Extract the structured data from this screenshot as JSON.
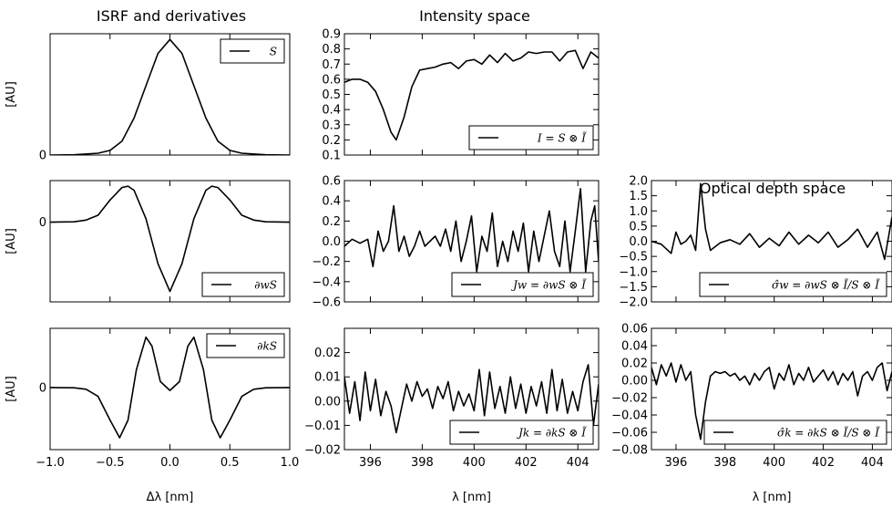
{
  "column_titles": [
    "ISRF and derivatives",
    "Intensity space",
    "Optical depth space"
  ],
  "chart_data": [
    {
      "id": "isrf-S",
      "type": "line",
      "ylabel": "[AU]",
      "xlabel": "",
      "xlim": [
        -1.0,
        1.0
      ],
      "ylim": [
        0,
        1.05
      ],
      "yticks": [
        0
      ],
      "ytick_labels": [
        "0"
      ],
      "xticks": [
        -1.0,
        -0.5,
        0.0,
        0.5,
        1.0
      ],
      "xtick_labels": [],
      "legend": {
        "label": "S",
        "loc": "upper right"
      },
      "series": [
        {
          "name": "S",
          "x": [
            -1.0,
            -0.8,
            -0.6,
            -0.5,
            -0.4,
            -0.3,
            -0.2,
            -0.1,
            0.0,
            0.1,
            0.2,
            0.3,
            0.4,
            0.5,
            0.6,
            0.8,
            1.0
          ],
          "y": [
            0,
            0.002,
            0.016,
            0.04,
            0.12,
            0.32,
            0.6,
            0.88,
            1.0,
            0.88,
            0.6,
            0.32,
            0.12,
            0.04,
            0.016,
            0.002,
            0
          ]
        }
      ]
    },
    {
      "id": "intensity-I",
      "type": "line",
      "xlabel": "",
      "ylabel": "",
      "xlim": [
        395,
        404.8
      ],
      "ylim": [
        0.1,
        0.9
      ],
      "yticks": [
        0.1,
        0.2,
        0.3,
        0.4,
        0.5,
        0.6,
        0.7,
        0.8,
        0.9
      ],
      "ytick_labels": [
        "0.1",
        "0.2",
        "0.3",
        "0.4",
        "0.5",
        "0.6",
        "0.7",
        "0.8",
        "0.9"
      ],
      "xticks": [
        396,
        398,
        400,
        402,
        404
      ],
      "xtick_labels": [],
      "legend": {
        "label": "I = S ⊗ Ĩ",
        "loc": "lower right"
      },
      "series": [
        {
          "name": "I = S ⊗ Ĩ",
          "x": [
            395,
            395.3,
            395.6,
            395.9,
            396.2,
            396.5,
            396.8,
            397.0,
            397.3,
            397.6,
            397.9,
            398.2,
            398.5,
            398.8,
            399.1,
            399.4,
            399.7,
            400.0,
            400.3,
            400.6,
            400.9,
            401.2,
            401.5,
            401.8,
            402.1,
            402.4,
            402.7,
            403.0,
            403.3,
            403.6,
            403.9,
            404.2,
            404.5,
            404.8
          ],
          "y": [
            0.58,
            0.6,
            0.6,
            0.58,
            0.52,
            0.4,
            0.25,
            0.2,
            0.35,
            0.55,
            0.66,
            0.67,
            0.68,
            0.7,
            0.71,
            0.67,
            0.72,
            0.73,
            0.7,
            0.76,
            0.71,
            0.77,
            0.72,
            0.74,
            0.78,
            0.77,
            0.78,
            0.78,
            0.72,
            0.78,
            0.79,
            0.67,
            0.78,
            0.74
          ]
        }
      ]
    },
    {
      "id": "isrf-dwS",
      "type": "line",
      "ylabel": "[AU]",
      "xlabel": "",
      "xlim": [
        -1.0,
        1.0
      ],
      "ylim": [
        -1.15,
        0.6
      ],
      "yticks": [
        0
      ],
      "ytick_labels": [
        "0"
      ],
      "xticks": [
        -1.0,
        -0.5,
        0.0,
        0.5,
        1.0
      ],
      "xtick_labels": [],
      "legend": {
        "label": "∂wS",
        "loc": "lower right"
      },
      "series": [
        {
          "name": "∂wS",
          "x": [
            -1.0,
            -0.8,
            -0.7,
            -0.6,
            -0.5,
            -0.4,
            -0.35,
            -0.3,
            -0.2,
            -0.1,
            0.0,
            0.1,
            0.2,
            0.3,
            0.35,
            0.4,
            0.5,
            0.6,
            0.7,
            0.8,
            1.0
          ],
          "y": [
            0,
            0.005,
            0.03,
            0.1,
            0.32,
            0.5,
            0.52,
            0.46,
            0.05,
            -0.6,
            -1.0,
            -0.6,
            0.05,
            0.46,
            0.52,
            0.5,
            0.32,
            0.1,
            0.03,
            0.005,
            0
          ]
        }
      ]
    },
    {
      "id": "intensity-Jw",
      "type": "line",
      "xlabel": "",
      "ylabel": "",
      "xlim": [
        395,
        404.8
      ],
      "ylim": [
        -0.6,
        0.6
      ],
      "yticks": [
        -0.6,
        -0.4,
        -0.2,
        0.0,
        0.2,
        0.4,
        0.6
      ],
      "ytick_labels": [
        "−0.6",
        "−0.4",
        "−0.2",
        "0.0",
        "0.2",
        "0.4",
        "0.6"
      ],
      "xticks": [
        396,
        398,
        400,
        402,
        404
      ],
      "xtick_labels": [],
      "legend": {
        "label": "Jw = ∂wS ⊗ Ĩ",
        "loc": "lower right"
      },
      "series": [
        {
          "name": "Jw = ∂wS ⊗ Ĩ",
          "x": [
            395,
            395.3,
            395.6,
            395.9,
            396.1,
            396.3,
            396.5,
            396.7,
            396.9,
            397.1,
            397.3,
            397.5,
            397.7,
            397.9,
            398.1,
            398.3,
            398.5,
            398.7,
            398.9,
            399.1,
            399.3,
            399.5,
            399.7,
            399.9,
            400.1,
            400.3,
            400.5,
            400.7,
            400.9,
            401.1,
            401.3,
            401.5,
            401.7,
            401.9,
            402.1,
            402.3,
            402.5,
            402.7,
            402.9,
            403.1,
            403.3,
            403.5,
            403.7,
            403.9,
            404.1,
            404.3,
            404.5,
            404.65,
            404.8
          ],
          "y": [
            -0.05,
            0.02,
            -0.02,
            0.02,
            -0.25,
            0.1,
            -0.1,
            0.0,
            0.35,
            -0.1,
            0.05,
            -0.15,
            -0.05,
            0.1,
            -0.05,
            0.0,
            0.05,
            -0.05,
            0.12,
            -0.1,
            0.2,
            -0.2,
            0.0,
            0.25,
            -0.3,
            0.05,
            -0.1,
            0.28,
            -0.25,
            0.0,
            -0.2,
            0.1,
            -0.1,
            0.18,
            -0.3,
            0.1,
            -0.2,
            0.05,
            0.3,
            -0.1,
            -0.25,
            0.2,
            -0.3,
            0.1,
            0.52,
            -0.3,
            0.2,
            0.35,
            -0.2
          ]
        }
      ]
    },
    {
      "id": "optical-sw",
      "type": "line",
      "xlabel": "",
      "ylabel": "",
      "xlim": [
        395,
        404.8
      ],
      "ylim": [
        -2.0,
        2.0
      ],
      "yticks": [
        -2.0,
        -1.5,
        -1.0,
        -0.5,
        0.0,
        0.5,
        1.0,
        1.5,
        2.0
      ],
      "ytick_labels": [
        "−2.0",
        "−1.5",
        "−1.0",
        "−0.5",
        "0.0",
        "0.5",
        "1.0",
        "1.5",
        "2.0"
      ],
      "xticks": [
        396,
        398,
        400,
        402,
        404
      ],
      "xtick_labels": [],
      "legend": {
        "label": "σ̂w = ∂wS ⊗ Ĩ/S ⊗ Ĩ",
        "loc": "lower right"
      },
      "series": [
        {
          "name": "σ̂w = ∂wS ⊗ Ĩ/S ⊗ Ĩ",
          "x": [
            395,
            395.4,
            395.8,
            396.0,
            396.2,
            396.4,
            396.6,
            396.8,
            397.0,
            397.2,
            397.4,
            397.8,
            398.2,
            398.6,
            399.0,
            399.4,
            399.8,
            400.2,
            400.6,
            401.0,
            401.4,
            401.8,
            402.2,
            402.6,
            403.0,
            403.4,
            403.8,
            404.2,
            404.5,
            404.8
          ],
          "y": [
            0.0,
            -0.1,
            -0.4,
            0.3,
            -0.1,
            0.0,
            0.2,
            -0.3,
            1.9,
            0.4,
            -0.3,
            -0.05,
            0.05,
            -0.1,
            0.25,
            -0.2,
            0.1,
            -0.15,
            0.3,
            -0.1,
            0.2,
            -0.05,
            0.3,
            -0.2,
            0.05,
            0.4,
            -0.2,
            0.3,
            -0.6,
            0.8
          ]
        }
      ]
    },
    {
      "id": "isrf-dkS",
      "type": "line",
      "ylabel": "[AU]",
      "xlabel": "Δλ [nm]",
      "xlim": [
        -1.0,
        1.0
      ],
      "ylim": [
        -1.05,
        1.0
      ],
      "yticks": [
        0
      ],
      "ytick_labels": [
        "0"
      ],
      "xticks": [
        -1.0,
        -0.5,
        0.0,
        0.5,
        1.0
      ],
      "xtick_labels": [
        "−1.0",
        "−0.5",
        "0.0",
        "0.5",
        "1.0"
      ],
      "legend": {
        "label": "∂kS",
        "loc": "upper right"
      },
      "series": [
        {
          "name": "∂kS",
          "x": [
            -1.0,
            -0.8,
            -0.7,
            -0.6,
            -0.5,
            -0.42,
            -0.35,
            -0.28,
            -0.2,
            -0.15,
            -0.08,
            0.0,
            0.08,
            0.15,
            0.2,
            0.28,
            0.35,
            0.42,
            0.5,
            0.6,
            0.7,
            0.8,
            1.0
          ],
          "y": [
            0,
            -0.005,
            -0.03,
            -0.15,
            -0.55,
            -0.85,
            -0.55,
            0.3,
            0.85,
            0.7,
            0.1,
            -0.05,
            0.1,
            0.7,
            0.85,
            0.3,
            -0.55,
            -0.85,
            -0.55,
            -0.15,
            -0.03,
            -0.005,
            0
          ]
        }
      ]
    },
    {
      "id": "intensity-Jk",
      "type": "line",
      "ylabel": "",
      "xlabel": "λ [nm]",
      "xlim": [
        395,
        404.8
      ],
      "ylim": [
        -0.02,
        0.03
      ],
      "yticks": [
        -0.02,
        -0.01,
        0.0,
        0.01,
        0.02
      ],
      "ytick_labels": [
        "−0.02",
        "−0.01",
        "0.00",
        "0.01",
        "0.02"
      ],
      "xticks": [
        396,
        398,
        400,
        402,
        404
      ],
      "xtick_labels": [
        "396",
        "398",
        "400",
        "402",
        "404"
      ],
      "legend": {
        "label": "Jk = ∂kS ⊗ Ĩ",
        "loc": "lower right"
      },
      "series": [
        {
          "name": "Jk = ∂kS ⊗ Ĩ",
          "x": [
            395,
            395.2,
            395.4,
            395.6,
            395.8,
            396.0,
            396.2,
            396.4,
            396.6,
            396.8,
            397.0,
            397.2,
            397.4,
            397.6,
            397.8,
            398.0,
            398.2,
            398.4,
            398.6,
            398.8,
            399.0,
            399.2,
            399.4,
            399.6,
            399.8,
            400.0,
            400.2,
            400.4,
            400.6,
            400.8,
            401.0,
            401.2,
            401.4,
            401.6,
            401.8,
            402.0,
            402.2,
            402.4,
            402.6,
            402.8,
            403.0,
            403.2,
            403.4,
            403.6,
            403.8,
            404.0,
            404.2,
            404.4,
            404.6,
            404.8
          ],
          "y": [
            0.01,
            -0.005,
            0.008,
            -0.008,
            0.012,
            -0.004,
            0.009,
            -0.006,
            0.004,
            -0.002,
            -0.013,
            -0.003,
            0.007,
            0.0,
            0.008,
            0.002,
            0.005,
            -0.003,
            0.006,
            0.001,
            0.008,
            -0.004,
            0.004,
            -0.002,
            0.003,
            -0.004,
            0.013,
            -0.006,
            0.012,
            -0.003,
            0.006,
            -0.005,
            0.01,
            -0.003,
            0.007,
            -0.005,
            0.006,
            -0.002,
            0.008,
            -0.005,
            0.013,
            -0.004,
            0.009,
            -0.005,
            0.004,
            -0.004,
            0.008,
            0.015,
            -0.01,
            0.007
          ]
        }
      ]
    },
    {
      "id": "optical-sk",
      "type": "line",
      "ylabel": "",
      "xlabel": "λ [nm]",
      "xlim": [
        395,
        404.8
      ],
      "ylim": [
        -0.08,
        0.06
      ],
      "yticks": [
        -0.08,
        -0.06,
        -0.04,
        -0.02,
        0.0,
        0.02,
        0.04,
        0.06
      ],
      "ytick_labels": [
        "−0.08",
        "−0.06",
        "−0.04",
        "−0.02",
        "0.00",
        "0.02",
        "0.04",
        "0.06"
      ],
      "xticks": [
        396,
        398,
        400,
        402,
        404
      ],
      "xtick_labels": [
        "396",
        "398",
        "400",
        "402",
        "404"
      ],
      "legend": {
        "label": "σ̂k = ∂kS ⊗ Ĩ/S ⊗ Ĩ",
        "loc": "lower right"
      },
      "series": [
        {
          "name": "σ̂k = ∂kS ⊗ Ĩ/S ⊗ Ĩ",
          "x": [
            395,
            395.2,
            395.4,
            395.6,
            395.8,
            396.0,
            396.2,
            396.4,
            396.6,
            396.8,
            397.0,
            397.2,
            397.4,
            397.6,
            397.8,
            398.0,
            398.2,
            398.4,
            398.6,
            398.8,
            399.0,
            399.2,
            399.4,
            399.6,
            399.8,
            400.0,
            400.2,
            400.4,
            400.6,
            400.8,
            401.0,
            401.2,
            401.4,
            401.6,
            401.8,
            402.0,
            402.2,
            402.4,
            402.6,
            402.8,
            403.0,
            403.2,
            403.4,
            403.6,
            403.8,
            404.0,
            404.2,
            404.4,
            404.6,
            404.8
          ],
          "y": [
            0.015,
            -0.005,
            0.018,
            0.005,
            0.02,
            -0.002,
            0.018,
            0.0,
            0.01,
            -0.04,
            -0.068,
            -0.025,
            0.005,
            0.01,
            0.008,
            0.01,
            0.005,
            0.008,
            0.0,
            0.005,
            -0.005,
            0.008,
            0.0,
            0.01,
            0.015,
            -0.01,
            0.008,
            0.0,
            0.018,
            -0.005,
            0.008,
            0.0,
            0.015,
            -0.002,
            0.005,
            0.012,
            0.0,
            0.01,
            -0.005,
            0.008,
            0.0,
            0.01,
            -0.018,
            0.005,
            0.01,
            0.0,
            0.015,
            0.02,
            -0.012,
            0.01
          ]
        }
      ]
    }
  ]
}
